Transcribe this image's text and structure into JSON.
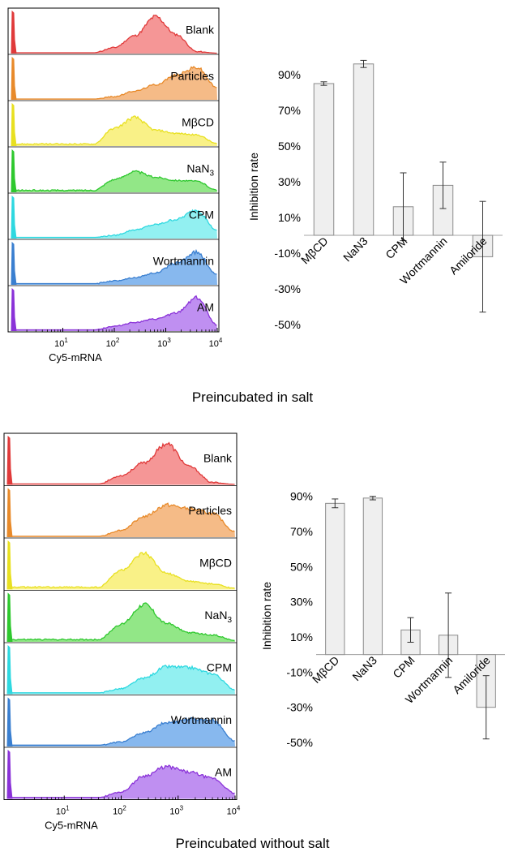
{
  "chart_data": [
    {
      "type": "area",
      "subtype": "flow-cytometry-histogram-stack",
      "xlabel": "Cy5-mRNA",
      "x_scale": "log",
      "xlim": [
        1,
        10000
      ],
      "x_ticks": [
        "10^1",
        "10^2",
        "10^3",
        "10^4"
      ],
      "tracks": [
        {
          "label": "Blank",
          "color": "#e03a3a",
          "fill": "#f48b8b",
          "x": [
            1.6,
            2.0,
            2.4,
            2.8,
            3.2,
            3.6,
            4.0
          ],
          "y": [
            0.02,
            0.15,
            0.45,
            0.93,
            0.48,
            0.05,
            0.01
          ]
        },
        {
          "label": "Particles",
          "color": "#e88a2a",
          "fill": "#f4b47a",
          "x": [
            1.6,
            2.0,
            2.4,
            2.8,
            3.2,
            3.6,
            4.0
          ],
          "y": [
            0.02,
            0.08,
            0.22,
            0.38,
            0.62,
            0.82,
            0.3
          ]
        },
        {
          "label": "MβCD",
          "color": "#e8e020",
          "fill": "#f8f07a",
          "x": [
            1.6,
            2.0,
            2.4,
            2.8,
            3.2,
            3.6,
            4.0
          ],
          "y": [
            0.05,
            0.45,
            0.72,
            0.4,
            0.32,
            0.28,
            0.06
          ]
        },
        {
          "label": "NaN3",
          "color": "#2ec82e",
          "fill": "#86e47a",
          "x": [
            1.6,
            2.0,
            2.4,
            2.8,
            3.2,
            3.6,
            4.0
          ],
          "y": [
            0.05,
            0.32,
            0.52,
            0.38,
            0.3,
            0.28,
            0.05
          ]
        },
        {
          "label": "CPM",
          "color": "#2ed8e0",
          "fill": "#86eef0",
          "x": [
            1.6,
            2.0,
            2.4,
            2.8,
            3.2,
            3.6,
            4.0
          ],
          "y": [
            0.03,
            0.08,
            0.22,
            0.35,
            0.48,
            0.72,
            0.2
          ]
        },
        {
          "label": "Wortmannin",
          "color": "#3a7fd0",
          "fill": "#7ab0ec",
          "x": [
            1.6,
            2.0,
            2.4,
            2.8,
            3.2,
            3.6,
            4.0
          ],
          "y": [
            0.03,
            0.1,
            0.18,
            0.3,
            0.55,
            0.82,
            0.25
          ]
        },
        {
          "label": "AM",
          "color": "#8a32d8",
          "fill": "#b883f0",
          "x": [
            1.6,
            2.0,
            2.4,
            2.8,
            3.2,
            3.6,
            4.0
          ],
          "y": [
            0.03,
            0.12,
            0.22,
            0.3,
            0.45,
            0.85,
            0.15
          ]
        }
      ]
    },
    {
      "type": "bar",
      "ylabel": "Inhibition rate",
      "ylim": [
        -50,
        100
      ],
      "y_ticks": [
        "90%",
        "70%",
        "50%",
        "30%",
        "10%",
        "-10%",
        "-30%",
        "-50%"
      ],
      "categories": [
        "MβCD",
        "NaN3",
        "CPM",
        "Wortmannin",
        "Amiloride"
      ],
      "values": [
        85,
        96,
        16,
        28,
        -12
      ],
      "errors": [
        1,
        2,
        19,
        13,
        31
      ]
    },
    {
      "type": "area",
      "subtype": "flow-cytometry-histogram-stack",
      "xlabel": "Cy5-mRNA",
      "x_scale": "log",
      "xlim": [
        1,
        10000
      ],
      "x_ticks": [
        "10^1",
        "10^2",
        "10^3",
        "10^4"
      ],
      "tracks": [
        {
          "label": "Blank",
          "color": "#e03a3a",
          "fill": "#f48b8b",
          "x": [
            1.6,
            2.0,
            2.4,
            2.8,
            3.2,
            3.6,
            4.0
          ],
          "y": [
            0.02,
            0.2,
            0.48,
            0.9,
            0.4,
            0.05,
            0.01
          ]
        },
        {
          "label": "Particles",
          "color": "#e88a2a",
          "fill": "#f4b47a",
          "x": [
            1.6,
            2.0,
            2.4,
            2.8,
            3.2,
            3.6,
            4.0
          ],
          "y": [
            0.02,
            0.15,
            0.45,
            0.7,
            0.62,
            0.52,
            0.12
          ]
        },
        {
          "label": "MβCD",
          "color": "#e8e020",
          "fill": "#f8f07a",
          "x": [
            1.6,
            2.0,
            2.4,
            2.8,
            3.2,
            3.6,
            4.0
          ],
          "y": [
            0.05,
            0.42,
            0.78,
            0.35,
            0.18,
            0.12,
            0.03
          ]
        },
        {
          "label": "NaN3",
          "color": "#2ec82e",
          "fill": "#86e47a",
          "x": [
            1.6,
            2.0,
            2.4,
            2.8,
            3.2,
            3.6,
            4.0
          ],
          "y": [
            0.05,
            0.38,
            0.82,
            0.4,
            0.2,
            0.15,
            0.03
          ]
        },
        {
          "label": "CPM",
          "color": "#2ed8e0",
          "fill": "#86eef0",
          "x": [
            1.6,
            2.0,
            2.4,
            2.8,
            3.2,
            3.6,
            4.0
          ],
          "y": [
            0.03,
            0.12,
            0.35,
            0.6,
            0.58,
            0.45,
            0.1
          ]
        },
        {
          "label": "Wortmannin",
          "color": "#3a7fd0",
          "fill": "#7ab0ec",
          "x": [
            1.6,
            2.0,
            2.4,
            2.8,
            3.2,
            3.6,
            4.0
          ],
          "y": [
            0.03,
            0.1,
            0.3,
            0.52,
            0.6,
            0.58,
            0.12
          ]
        },
        {
          "label": "AM",
          "color": "#8a32d8",
          "fill": "#b883f0",
          "x": [
            1.6,
            2.0,
            2.4,
            2.8,
            3.2,
            3.6,
            4.0
          ],
          "y": [
            0.03,
            0.15,
            0.5,
            0.7,
            0.58,
            0.45,
            0.12
          ]
        }
      ]
    },
    {
      "type": "bar",
      "ylabel": "Inhibition rate",
      "ylim": [
        -50,
        100
      ],
      "y_ticks": [
        "90%",
        "70%",
        "50%",
        "30%",
        "10%",
        "-10%",
        "-30%",
        "-50%"
      ],
      "categories": [
        "MβCD",
        "NaN3",
        "CPM",
        "Wortmannin",
        "Amiloride"
      ],
      "values": [
        86,
        89,
        14,
        11,
        -30
      ],
      "errors": [
        2.5,
        1,
        7,
        24,
        18
      ]
    }
  ],
  "captions": {
    "top": "Preincubated in salt",
    "bottom": "Preincubated without salt"
  }
}
